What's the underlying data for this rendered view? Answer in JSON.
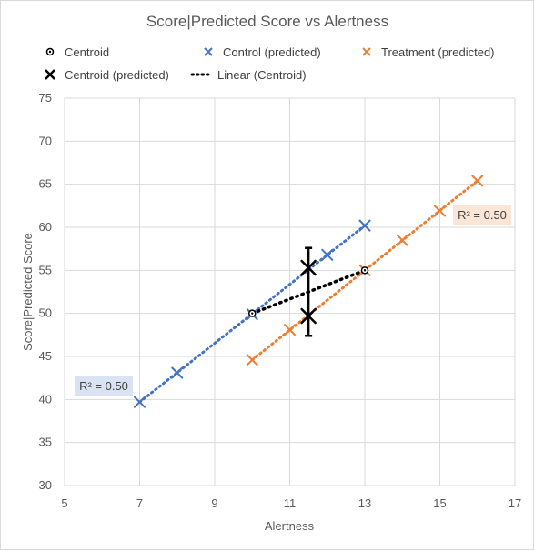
{
  "chart_data": {
    "type": "scatter",
    "title": "Score|Predicted Score vs Alertness",
    "xlabel": "Alertness",
    "ylabel": "Score|Predicted Score",
    "xlim": [
      5,
      17
    ],
    "ylim": [
      30,
      75
    ],
    "x_ticks": [
      "5",
      "7",
      "9",
      "11",
      "13",
      "15",
      "17"
    ],
    "y_ticks": [
      "30",
      "35",
      "40",
      "45",
      "50",
      "55",
      "60",
      "65",
      "70",
      "75"
    ],
    "grid": true,
    "legend": [
      {
        "label": "Centroid",
        "marker": "circle-dot",
        "color": "#000000"
      },
      {
        "label": "Control (predicted)",
        "marker": "x",
        "color": "#4472C4"
      },
      {
        "label": "Treatment (predicted)",
        "marker": "x",
        "color": "#ED7D31"
      },
      {
        "label": "Centroid (predicted)",
        "marker": "x-large",
        "color": "#000000"
      },
      {
        "label": "Linear (Centroid)",
        "marker": "dotted-line",
        "color": "#000000"
      }
    ],
    "series": [
      {
        "name": "Control (predicted)",
        "color": "#4472C4",
        "points": [
          [
            7,
            39.7
          ],
          [
            8,
            43.1
          ],
          [
            10,
            49.9
          ],
          [
            12,
            56.8
          ],
          [
            13,
            60.2
          ]
        ],
        "trendline": {
          "x": [
            7,
            13
          ],
          "y": [
            39.7,
            60.2
          ],
          "r2_label": "R² = 0.50",
          "r2_bg": "#DAE3F3"
        }
      },
      {
        "name": "Treatment (predicted)",
        "color": "#ED7D31",
        "points": [
          [
            10,
            44.6
          ],
          [
            11,
            48.1
          ],
          [
            13,
            55.0
          ],
          [
            14,
            58.5
          ],
          [
            15,
            61.9
          ],
          [
            16,
            65.4
          ]
        ],
        "trendline": {
          "x": [
            10,
            16
          ],
          "y": [
            44.6,
            65.4
          ],
          "r2_label": "R² = 0.50",
          "r2_bg": "#FBE5D6"
        }
      },
      {
        "name": "Centroid",
        "color": "#000000",
        "points": [
          [
            10,
            50.0
          ],
          [
            13,
            55.0
          ]
        ]
      },
      {
        "name": "Centroid (predicted)",
        "color": "#000000",
        "points": [
          [
            11.5,
            55.3
          ],
          [
            11.5,
            49.7
          ]
        ],
        "error_bar_range": [
          47.4,
          57.6
        ]
      },
      {
        "name": "Linear (Centroid)",
        "color": "#000000",
        "line": {
          "x": [
            10,
            13
          ],
          "y": [
            50.0,
            55.0
          ]
        }
      }
    ]
  }
}
